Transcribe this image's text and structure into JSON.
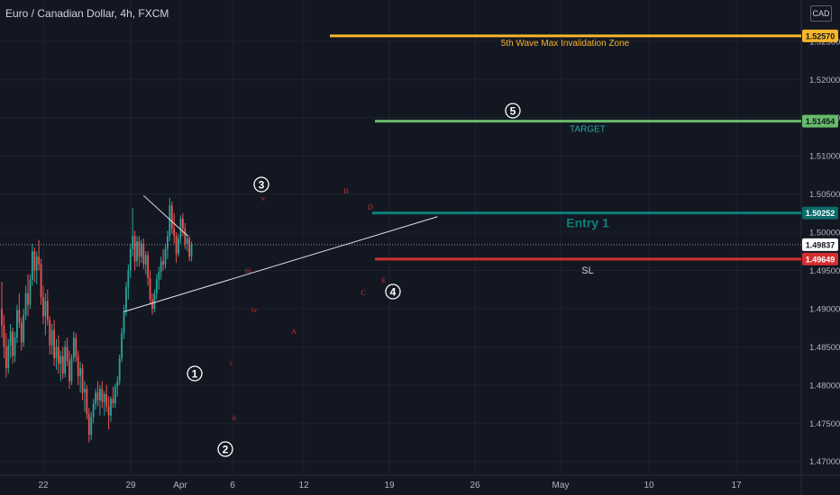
{
  "header": {
    "title": "Euro / Canadian Dollar, 4h, FXCM",
    "currency": "CAD"
  },
  "colors": {
    "background": "#131722",
    "up": "#26a69a",
    "down": "#ef5350",
    "invalidation": "#f7b52b",
    "target": "#66bb6a",
    "entry": "#0e7e7a",
    "sl": "#d32f2f",
    "wave_label": "#d32f2f",
    "text": "#d1d4dc",
    "grid": "#1e222d"
  },
  "chart_data": {
    "type": "candlestick",
    "symbol": "EURCAD",
    "timeframe": "4h",
    "y_axis": {
      "min": 1.4682,
      "max": 1.5304,
      "ticks": [
        "1.47000",
        "1.47500",
        "1.48000",
        "1.48500",
        "1.49000",
        "1.49500",
        "1.50000",
        "1.50500",
        "1.51000",
        "1.51500",
        "1.52000",
        "1.52500"
      ]
    },
    "x_axis": {
      "labels": [
        "22",
        "29",
        "Apr",
        "6",
        "12",
        "19",
        "26",
        "May",
        "10",
        "17"
      ]
    },
    "price_levels": [
      {
        "name": "invalidation",
        "value": 1.5257,
        "label": "1.52570",
        "caption": "5th Wave Max Invalidation Zone"
      },
      {
        "name": "target",
        "value": 1.51454,
        "label": "1.51454",
        "caption": "TARGET"
      },
      {
        "name": "entry",
        "value": 1.50252,
        "label": "1.50252",
        "caption": "Entry 1"
      },
      {
        "name": "current",
        "value": 1.49837,
        "label": "1.49837",
        "caption": ""
      },
      {
        "name": "sl",
        "value": 1.49649,
        "label": "1.49649",
        "caption": "SL"
      }
    ],
    "candles_4h": [
      [
        1.49,
        1.4935,
        1.4862,
        1.4878
      ],
      [
        1.4878,
        1.4892,
        1.4835,
        1.485
      ],
      [
        1.485,
        1.4868,
        1.481,
        1.4822
      ],
      [
        1.4822,
        1.486,
        1.4815,
        1.4852
      ],
      [
        1.4852,
        1.488,
        1.4835,
        1.487
      ],
      [
        1.487,
        1.4875,
        1.4828,
        1.4838
      ],
      [
        1.4838,
        1.487,
        1.483,
        1.4862
      ],
      [
        1.4862,
        1.4905,
        1.4855,
        1.4898
      ],
      [
        1.4898,
        1.492,
        1.4875,
        1.4882
      ],
      [
        1.4882,
        1.4888,
        1.4845,
        1.4856
      ],
      [
        1.4856,
        1.49,
        1.485,
        1.4892
      ],
      [
        1.4892,
        1.493,
        1.4885,
        1.492
      ],
      [
        1.492,
        1.4945,
        1.489,
        1.4905
      ],
      [
        1.4905,
        1.4945,
        1.49,
        1.4938
      ],
      [
        1.4938,
        1.4985,
        1.493,
        1.4975
      ],
      [
        1.4975,
        1.498,
        1.4935,
        1.495
      ],
      [
        1.495,
        1.4975,
        1.4932,
        1.4968
      ],
      [
        1.4968,
        1.499,
        1.495,
        1.4958
      ],
      [
        1.4958,
        1.4965,
        1.4905,
        1.4915
      ],
      [
        1.4915,
        1.493,
        1.488,
        1.489
      ],
      [
        1.489,
        1.492,
        1.4865,
        1.491
      ],
      [
        1.491,
        1.4925,
        1.4878,
        1.4885
      ],
      [
        1.4885,
        1.489,
        1.484,
        1.4852
      ],
      [
        1.4852,
        1.488,
        1.484,
        1.4872
      ],
      [
        1.4872,
        1.4885,
        1.4825,
        1.4835
      ],
      [
        1.4835,
        1.486,
        1.482,
        1.485
      ],
      [
        1.485,
        1.4865,
        1.4815,
        1.4828
      ],
      [
        1.4828,
        1.4845,
        1.4805,
        1.4838
      ],
      [
        1.4838,
        1.485,
        1.4808,
        1.4815
      ],
      [
        1.4815,
        1.4858,
        1.481,
        1.485
      ],
      [
        1.485,
        1.4862,
        1.4825,
        1.4832
      ],
      [
        1.4832,
        1.4845,
        1.4795,
        1.4805
      ],
      [
        1.4805,
        1.484,
        1.48,
        1.4835
      ],
      [
        1.4835,
        1.487,
        1.483,
        1.4862
      ],
      [
        1.4862,
        1.4868,
        1.483,
        1.4838
      ],
      [
        1.4838,
        1.4845,
        1.48,
        1.4812
      ],
      [
        1.4812,
        1.483,
        1.479,
        1.4822
      ],
      [
        1.4822,
        1.4828,
        1.478,
        1.479
      ],
      [
        1.479,
        1.4805,
        1.4765,
        1.4795
      ],
      [
        1.4795,
        1.48,
        1.4755,
        1.4762
      ],
      [
        1.4762,
        1.477,
        1.4725,
        1.4735
      ],
      [
        1.4735,
        1.4765,
        1.4728,
        1.4758
      ],
      [
        1.4758,
        1.4782,
        1.475,
        1.4775
      ],
      [
        1.4775,
        1.4795,
        1.4768,
        1.479
      ],
      [
        1.479,
        1.4805,
        1.4772,
        1.478
      ],
      [
        1.478,
        1.48,
        1.476,
        1.4795
      ],
      [
        1.4795,
        1.4805,
        1.477,
        1.4778
      ],
      [
        1.4778,
        1.4792,
        1.476,
        1.4788
      ],
      [
        1.4788,
        1.48,
        1.4765,
        1.4772
      ],
      [
        1.4772,
        1.4785,
        1.4742,
        1.476
      ],
      [
        1.476,
        1.4785,
        1.4752,
        1.4782
      ],
      [
        1.4782,
        1.4798,
        1.477,
        1.4776
      ],
      [
        1.4776,
        1.4802,
        1.477,
        1.4798
      ],
      [
        1.4798,
        1.4812,
        1.4785,
        1.4805
      ],
      [
        1.4805,
        1.484,
        1.48,
        1.4835
      ],
      [
        1.4835,
        1.4875,
        1.483,
        1.4868
      ],
      [
        1.4868,
        1.4905,
        1.486,
        1.4898
      ],
      [
        1.4898,
        1.4935,
        1.489,
        1.4928
      ],
      [
        1.4928,
        1.4958,
        1.4912,
        1.495
      ],
      [
        1.495,
        1.4985,
        1.494,
        1.4978
      ],
      [
        1.4978,
        1.5032,
        1.4968,
        1.4995
      ],
      [
        1.4995,
        1.5002,
        1.495,
        1.4962
      ],
      [
        1.4962,
        1.4995,
        1.4955,
        1.4988
      ],
      [
        1.4988,
        1.4995,
        1.4955,
        1.4968
      ],
      [
        1.4968,
        1.499,
        1.496,
        1.4985
      ],
      [
        1.4985,
        1.4992,
        1.4952,
        1.4958
      ],
      [
        1.4958,
        1.4975,
        1.4945,
        1.497
      ],
      [
        1.497,
        1.4975,
        1.493,
        1.494
      ],
      [
        1.494,
        1.495,
        1.4905,
        1.4912
      ],
      [
        1.4912,
        1.492,
        1.4892,
        1.49
      ],
      [
        1.49,
        1.4925,
        1.4895,
        1.492
      ],
      [
        1.492,
        1.4945,
        1.4912,
        1.4938
      ],
      [
        1.4938,
        1.4955,
        1.4925,
        1.4948
      ],
      [
        1.4948,
        1.4968,
        1.4938,
        1.4962
      ],
      [
        1.4962,
        1.4978,
        1.495,
        1.4958
      ],
      [
        1.4958,
        1.4985,
        1.4952,
        1.4978
      ],
      [
        1.4978,
        1.5002,
        1.4965,
        1.4995
      ],
      [
        1.4995,
        1.5045,
        1.4988,
        1.5035
      ],
      [
        1.5035,
        1.504,
        1.4998,
        1.5005
      ],
      [
        1.5005,
        1.5025,
        1.4985,
        1.4995
      ],
      [
        1.4995,
        1.5,
        1.496,
        1.4972
      ],
      [
        1.4972,
        1.4998,
        1.4968,
        1.4992
      ],
      [
        1.4992,
        1.5022,
        1.4985,
        1.5018
      ],
      [
        1.5018,
        1.5025,
        1.4995,
        1.5005
      ],
      [
        1.5005,
        1.5012,
        1.4978,
        1.4985
      ],
      [
        1.4985,
        1.4998,
        1.4975,
        1.4992
      ],
      [
        1.4992,
        1.4996,
        1.4962,
        1.4968
      ],
      [
        1.4968,
        1.4988,
        1.4962,
        1.4984
      ]
    ]
  },
  "waves": {
    "circled": [
      {
        "text": "1",
        "date_index": 33,
        "price": 1.481
      },
      {
        "text": "2",
        "date_index": 40,
        "price": 1.4727
      },
      {
        "text": "3",
        "date_index": 46,
        "price": 1.5073
      },
      {
        "text": "4",
        "date_index": 73,
        "price": 1.4945
      },
      {
        "text": "5",
        "date_index": 96,
        "price": 1.5178
      }
    ],
    "small": [
      {
        "text": "i",
        "date_index": 43,
        "price": 1.4838
      },
      {
        "text": "ii",
        "date_index": 43,
        "price": 1.4758
      },
      {
        "text": "iii",
        "date_index": 45,
        "price": 1.4962
      },
      {
        "text": "iv",
        "date_index": 47,
        "price": 1.4918
      },
      {
        "text": "v",
        "date_index": 48,
        "price": 1.5045
      },
      {
        "text": "A",
        "date_index": 56,
        "price": 1.4875
      },
      {
        "text": "B",
        "date_index": 65,
        "price": 1.5055
      },
      {
        "text": "C",
        "date_index": 68,
        "price": 1.4942
      },
      {
        "text": "D",
        "date_index": 70,
        "price": 1.5035
      },
      {
        "text": "E",
        "date_index": 72,
        "price": 1.4956
      }
    ],
    "triangle_upper": [
      [
        65,
        1.5048
      ],
      [
        77,
        1.4988
      ]
    ],
    "triangle_lower": [
      [
        56,
        1.4896
      ],
      [
        82,
        1.5018
      ]
    ]
  }
}
